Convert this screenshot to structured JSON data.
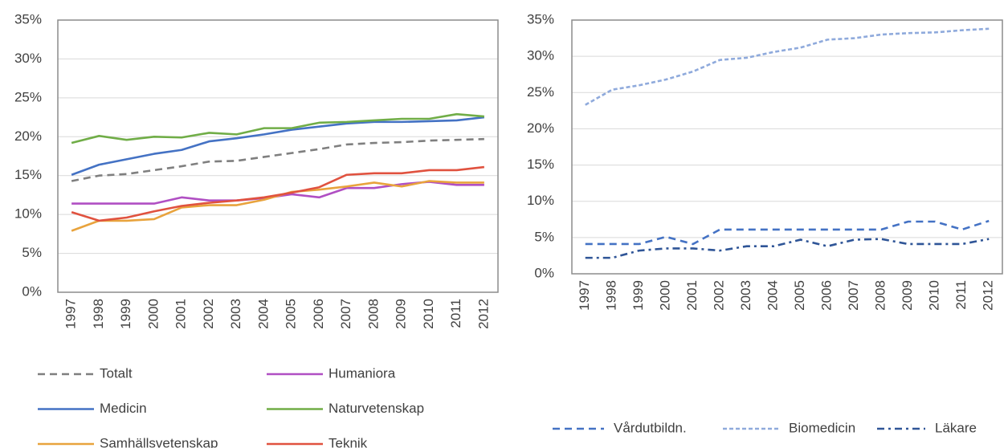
{
  "chart_data": [
    {
      "type": "line",
      "categories": [
        "1997",
        "1998",
        "1999",
        "2000",
        "2001",
        "2002",
        "2003",
        "2004",
        "2005",
        "2006",
        "2007",
        "2008",
        "2009",
        "2010",
        "2011",
        "2012"
      ],
      "ylim": [
        0,
        35
      ],
      "yticks": [
        {
          "value": 0,
          "label": "0%"
        },
        {
          "value": 5,
          "label": "5%"
        },
        {
          "value": 10,
          "label": "10%"
        },
        {
          "value": 15,
          "label": "15%"
        },
        {
          "value": 20,
          "label": "20%"
        },
        {
          "value": 25,
          "label": "25%"
        },
        {
          "value": 30,
          "label": "30%"
        },
        {
          "value": 35,
          "label": "35%"
        }
      ],
      "grid": true,
      "legend": "bottom",
      "series": [
        {
          "name": "Totalt",
          "color": "#7f7f7f",
          "dash": "dashed",
          "values": [
            14.3,
            15.0,
            15.2,
            15.7,
            16.2,
            16.8,
            16.9,
            17.4,
            17.9,
            18.4,
            19.0,
            19.2,
            19.3,
            19.5,
            19.6,
            19.7
          ]
        },
        {
          "name": "Humaniora",
          "color": "#b04fc3",
          "dash": "solid",
          "values": [
            11.4,
            11.4,
            11.4,
            11.4,
            12.2,
            11.8,
            11.8,
            12.1,
            12.6,
            12.2,
            13.4,
            13.4,
            13.9,
            14.2,
            13.8,
            13.8
          ]
        },
        {
          "name": "Medicin",
          "color": "#4472c4",
          "dash": "solid",
          "values": [
            15.1,
            16.4,
            17.1,
            17.8,
            18.3,
            19.4,
            19.8,
            20.3,
            20.9,
            21.3,
            21.7,
            21.9,
            21.9,
            22.0,
            22.1,
            22.5
          ]
        },
        {
          "name": "Naturvetenskap",
          "color": "#70ad47",
          "dash": "solid",
          "values": [
            19.2,
            20.1,
            19.6,
            20.0,
            19.9,
            20.5,
            20.3,
            21.1,
            21.1,
            21.8,
            21.9,
            22.1,
            22.3,
            22.3,
            22.9,
            22.6
          ]
        },
        {
          "name": "Samhällsvetenskap",
          "color": "#e8a33d",
          "dash": "solid",
          "values": [
            7.9,
            9.2,
            9.2,
            9.4,
            10.9,
            11.2,
            11.2,
            11.9,
            12.9,
            13.2,
            13.6,
            14.1,
            13.6,
            14.3,
            14.1,
            14.1
          ]
        },
        {
          "name": "Teknik",
          "color": "#e0523f",
          "dash": "solid",
          "values": [
            10.3,
            9.2,
            9.6,
            10.4,
            11.1,
            11.5,
            11.8,
            12.2,
            12.8,
            13.5,
            15.1,
            15.3,
            15.3,
            15.7,
            15.7,
            16.1
          ]
        }
      ]
    },
    {
      "type": "line",
      "categories": [
        "1997",
        "1998",
        "1999",
        "2000",
        "2001",
        "2002",
        "2003",
        "2004",
        "2005",
        "2006",
        "2007",
        "2008",
        "2009",
        "2010",
        "2011",
        "2012"
      ],
      "ylim": [
        0,
        35
      ],
      "yticks": [
        {
          "value": 0,
          "label": "0%"
        },
        {
          "value": 5,
          "label": "5%"
        },
        {
          "value": 10,
          "label": "10%"
        },
        {
          "value": 15,
          "label": "15%"
        },
        {
          "value": 20,
          "label": "20%"
        },
        {
          "value": 25,
          "label": "25%"
        },
        {
          "value": 30,
          "label": "30%"
        },
        {
          "value": 35,
          "label": "35%"
        }
      ],
      "grid": true,
      "legend": "bottom",
      "series": [
        {
          "name": "Vårdutbildn.",
          "color": "#4472c4",
          "dash": "dashed",
          "values": [
            4.1,
            4.1,
            4.1,
            5.1,
            4.1,
            6.1,
            6.1,
            6.1,
            6.1,
            6.1,
            6.1,
            6.1,
            7.2,
            7.2,
            6.1,
            7.3
          ]
        },
        {
          "name": "Biomedicin",
          "color": "#8faadc",
          "dash": "short-dashed",
          "values": [
            23.3,
            25.4,
            26.0,
            26.8,
            27.9,
            29.5,
            29.8,
            30.6,
            31.2,
            32.3,
            32.5,
            33.0,
            33.2,
            33.3,
            33.6,
            33.8
          ]
        },
        {
          "name": "Läkare",
          "color": "#2f5597",
          "dash": "dash-dot",
          "values": [
            2.2,
            2.2,
            3.2,
            3.5,
            3.5,
            3.2,
            3.8,
            3.8,
            4.7,
            3.8,
            4.7,
            4.8,
            4.1,
            4.1,
            4.1,
            4.8
          ]
        }
      ]
    }
  ]
}
